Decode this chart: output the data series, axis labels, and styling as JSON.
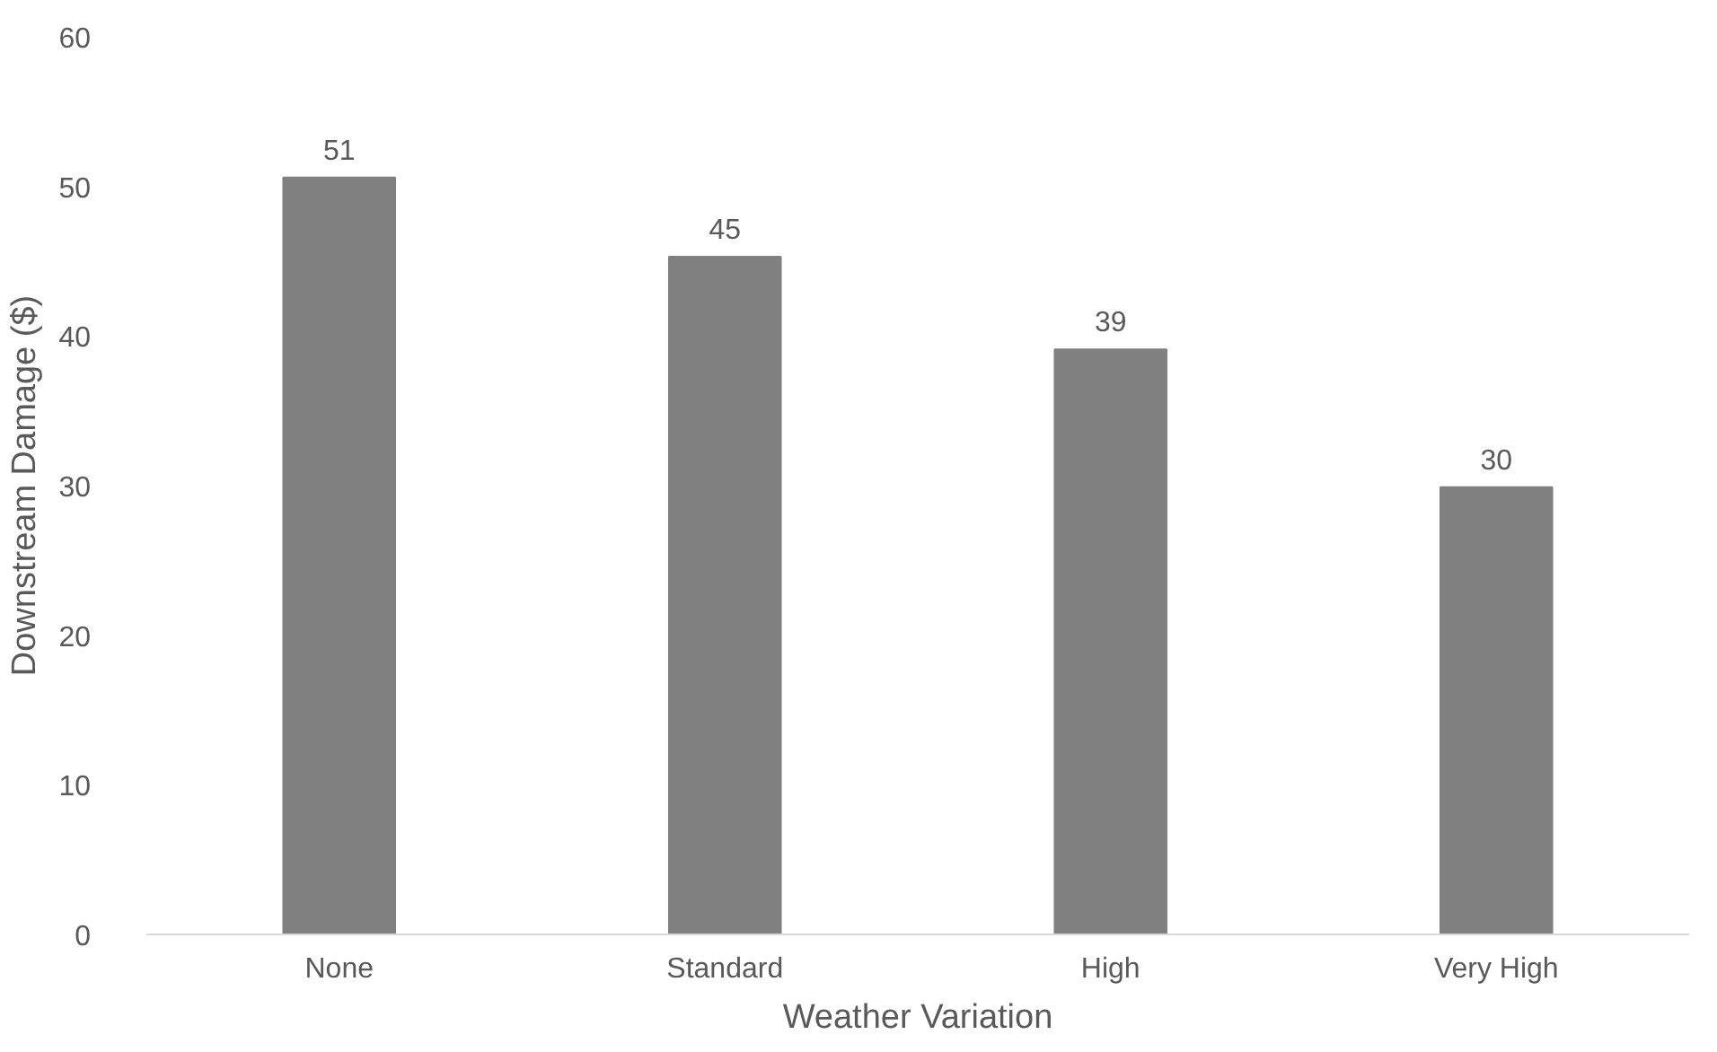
{
  "chart_data": {
    "type": "bar",
    "xlabel": "Weather Variation",
    "ylabel": "Downstream Damage ($)",
    "categories": [
      "None",
      "Standard",
      "High",
      "Very High"
    ],
    "values": [
      50.6,
      45.3,
      39.1,
      29.9
    ],
    "value_labels": [
      "51",
      "45",
      "39",
      "30"
    ],
    "color": "#808080",
    "ylim": [
      0,
      60
    ],
    "yticks": [
      0,
      10,
      20,
      30,
      40,
      50,
      60
    ],
    "grid": false
  }
}
